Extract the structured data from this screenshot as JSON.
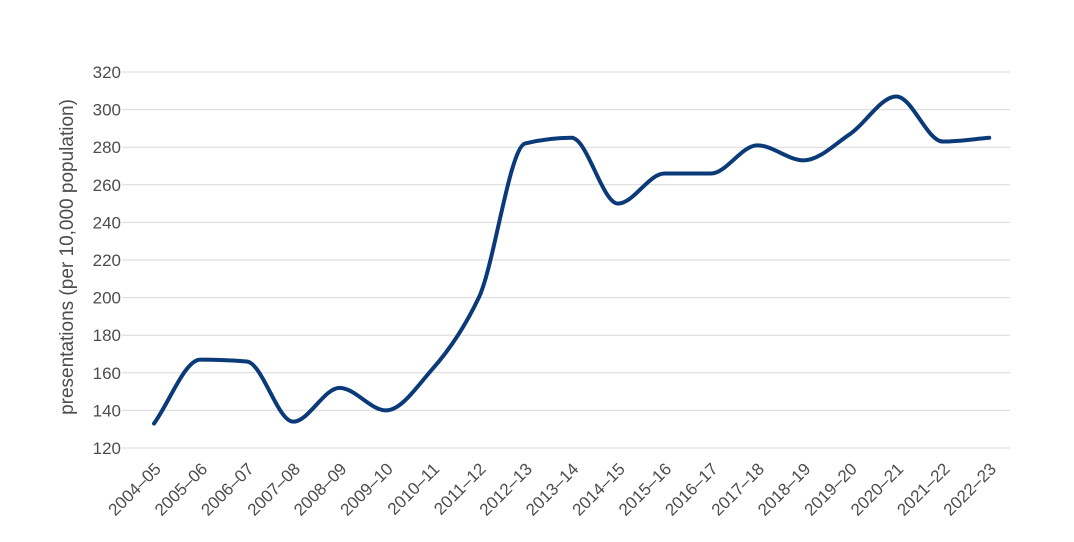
{
  "chart_data": {
    "type": "line",
    "title": "",
    "xlabel": "",
    "ylabel": "presentations (per 10,000 population)",
    "ylim": [
      120,
      320
    ],
    "yticks": [
      120,
      140,
      160,
      180,
      200,
      220,
      240,
      260,
      280,
      300,
      320
    ],
    "grid": true,
    "categories": [
      "2004–05",
      "2005–06",
      "2006–07",
      "2007–08",
      "2008–09",
      "2009–10",
      "2010–11",
      "2011–12",
      "2012–13",
      "2013–14",
      "2014–15",
      "2015–16",
      "2016–17",
      "2017–18",
      "2018–19",
      "2019–20",
      "2020–21",
      "2021–22",
      "2022–23"
    ],
    "series": [
      {
        "color": "#0b3a78",
        "values": [
          133,
          167,
          166,
          134,
          152,
          140,
          162,
          200,
          282,
          285,
          250,
          266,
          266,
          281,
          273,
          287,
          307,
          283,
          285
        ]
      }
    ]
  }
}
